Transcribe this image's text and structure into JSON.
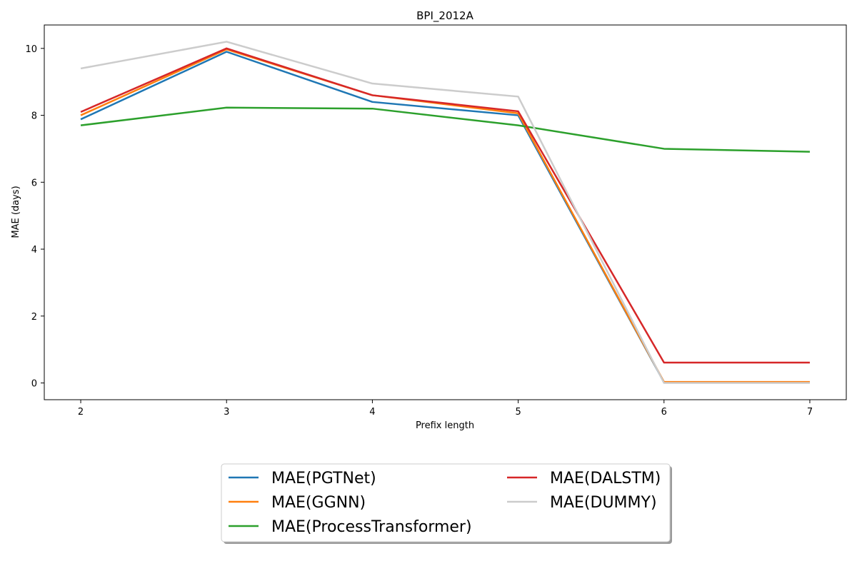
{
  "chart_data": {
    "type": "line",
    "title": "BPI_2012A",
    "xlabel": "Prefix length",
    "ylabel": "MAE (days)",
    "x": [
      2,
      3,
      4,
      5,
      6,
      7
    ],
    "xlim": [
      1.75,
      7.25
    ],
    "ylim": [
      -0.5,
      10.7
    ],
    "yticks": [
      0,
      2,
      4,
      6,
      8,
      10
    ],
    "grid": false,
    "legend_position": "bottom-center",
    "series": [
      {
        "name": "MAE(PGTNet)",
        "color": "#1f77b4",
        "values": [
          7.88,
          9.9,
          8.4,
          8.0,
          0.02,
          0.02
        ]
      },
      {
        "name": "MAE(GGNN)",
        "color": "#ff7f0e",
        "values": [
          8.0,
          9.97,
          8.6,
          8.06,
          0.03,
          0.03
        ]
      },
      {
        "name": "MAE(ProcessTransformer)",
        "color": "#2ca02c",
        "values": [
          7.7,
          8.23,
          8.2,
          7.7,
          7.0,
          6.91
        ]
      },
      {
        "name": "MAE(DALSTM)",
        "color": "#d62728",
        "values": [
          8.1,
          10.0,
          8.6,
          8.12,
          0.61,
          0.61
        ]
      },
      {
        "name": "MAE(DUMMY)",
        "color": "#cccccc",
        "values": [
          9.4,
          10.2,
          8.95,
          8.56,
          0.0,
          0.0
        ]
      }
    ]
  }
}
